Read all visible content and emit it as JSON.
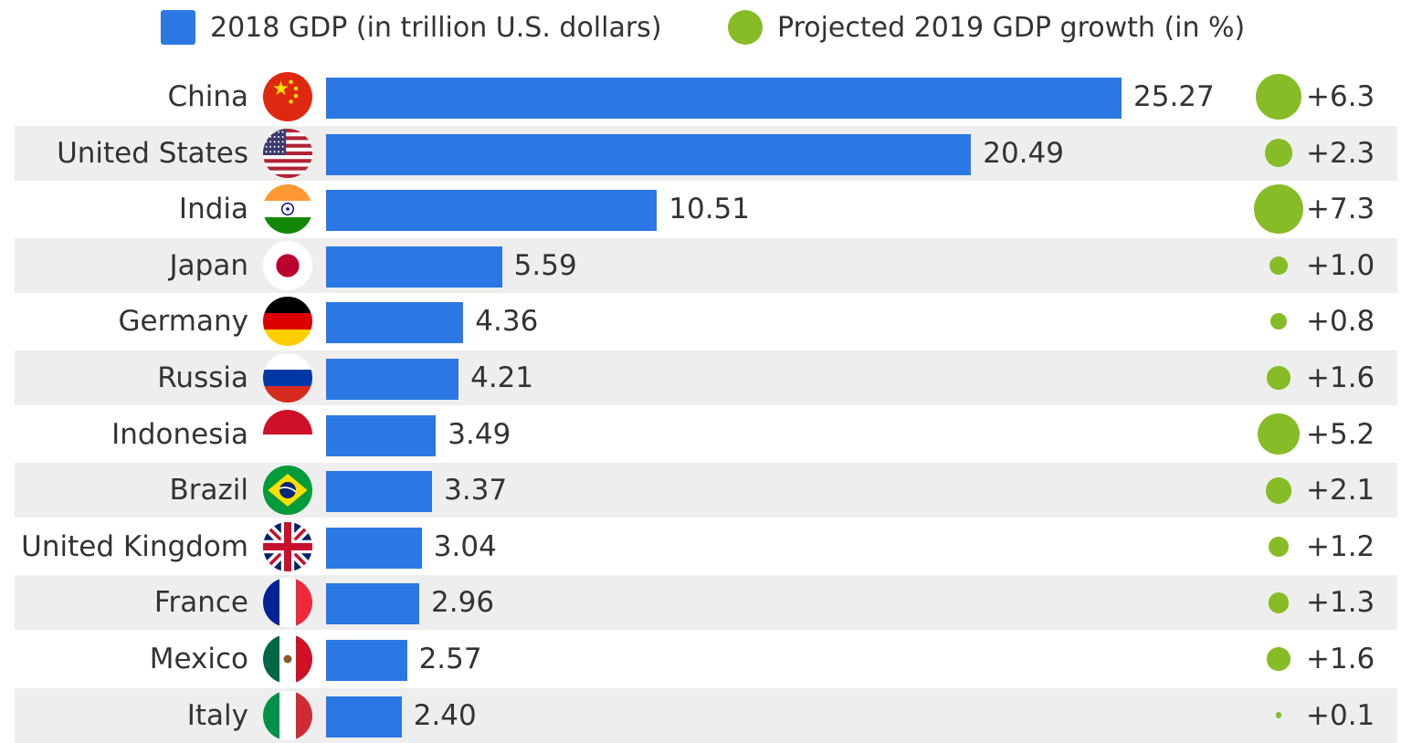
{
  "legend": {
    "gdp": "2018 GDP (in trillion U.S. dollars)",
    "growth": "Projected 2019 GDP growth (in %)"
  },
  "colors": {
    "bar": "#2b78e4",
    "dot": "#86bc25",
    "shade": "#eeeeee",
    "text": "#333333"
  },
  "chart_data": {
    "type": "bar",
    "orientation": "horizontal",
    "categories": [
      "China",
      "United States",
      "India",
      "Japan",
      "Germany",
      "Russia",
      "Indonesia",
      "Brazil",
      "United Kingdom",
      "France",
      "Mexico",
      "Italy"
    ],
    "series": [
      {
        "name": "2018 GDP (in trillion U.S. dollars)",
        "values": [
          25.27,
          20.49,
          10.51,
          5.59,
          4.36,
          4.21,
          3.49,
          3.37,
          3.04,
          2.96,
          2.57,
          2.4
        ],
        "labels": [
          "25.27",
          "20.49",
          "10.51",
          "5.59",
          "4.36",
          "4.21",
          "3.49",
          "3.37",
          "3.04",
          "2.96",
          "2.57",
          "2.40"
        ]
      },
      {
        "name": "Projected 2019 GDP growth (in %)",
        "values": [
          6.3,
          2.3,
          7.3,
          1.0,
          0.8,
          1.6,
          5.2,
          2.1,
          1.2,
          1.3,
          1.6,
          0.1
        ],
        "labels": [
          "+6.3",
          "+2.3",
          "+7.3",
          "+1.0",
          "+0.8",
          "+1.6",
          "+5.2",
          "+2.1",
          "+1.2",
          "+1.3",
          "+1.6",
          "+0.1"
        ]
      }
    ],
    "flags": [
      "china-flag-icon",
      "united-states-flag-icon",
      "india-flag-icon",
      "japan-flag-icon",
      "germany-flag-icon",
      "russia-flag-icon",
      "indonesia-flag-icon",
      "brazil-flag-icon",
      "united-kingdom-flag-icon",
      "france-flag-icon",
      "mexico-flag-icon",
      "italy-flag-icon"
    ],
    "legend_position": "top",
    "grid": false,
    "xlim": [
      0,
      25.27
    ]
  }
}
